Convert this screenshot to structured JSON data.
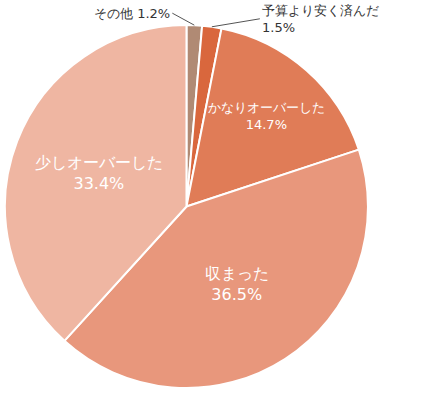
{
  "chart_data": {
    "type": "pie",
    "categories": [
      "その他",
      "予算より安く済んだ",
      "かなりオーバーした",
      "収まった",
      "少しオーバーした"
    ],
    "values": [
      1.2,
      1.5,
      14.7,
      36.5,
      33.4
    ],
    "value_labels": [
      "1.2%",
      "1.5%",
      "14.7%",
      "36.5%",
      "33.4%"
    ],
    "colors": [
      "#b08a74",
      "#d9673d",
      "#e07c57",
      "#e8977c",
      "#efb6a2"
    ],
    "data_labels": true
  }
}
